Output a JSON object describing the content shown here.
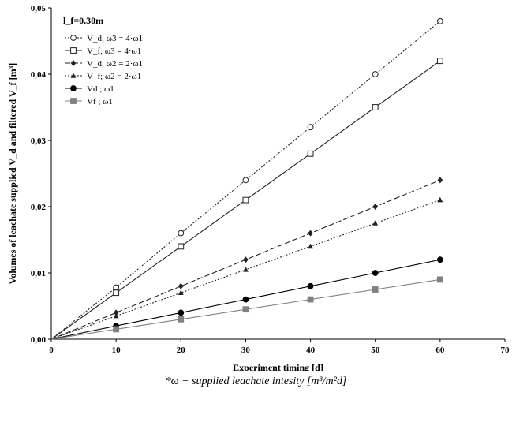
{
  "chart_data": {
    "type": "line",
    "xlabel": "Experiment timing [d]",
    "ylabel": "Volumes of leachate supplied V_d and filtered V_f [m³]",
    "xlim": [
      0,
      70
    ],
    "ylim": [
      0,
      0.05
    ],
    "x_ticks": [
      "0",
      "10",
      "20",
      "30",
      "40",
      "50",
      "60",
      "70"
    ],
    "y_ticks": [
      "0,00",
      "0,01",
      "0,02",
      "0,03",
      "0,04",
      "0,05"
    ],
    "grid": false,
    "legend_placement": "top-left",
    "legend_title": "l_f=0.30m",
    "x": [
      0,
      10,
      20,
      30,
      40,
      50,
      60
    ],
    "series": [
      {
        "name": "V_d; ω3 = 4·ω1",
        "marker": "open-circle",
        "line": "dotted",
        "color": "#222222",
        "values": [
          0,
          0.0078,
          0.016,
          0.024,
          0.032,
          0.04,
          0.048
        ]
      },
      {
        "name": "V_f; ω3 = 4·ω1",
        "marker": "open-square",
        "line": "solid",
        "color": "#222222",
        "values": [
          0,
          0.007,
          0.014,
          0.021,
          0.028,
          0.035,
          0.042
        ]
      },
      {
        "name": "V_d; ω2 = 2·ω1",
        "marker": "diamond",
        "line": "dashed",
        "color": "#222222",
        "values": [
          0,
          0.004,
          0.008,
          0.012,
          0.016,
          0.02,
          0.024
        ]
      },
      {
        "name": "V_f; ω2 = 2·ω1",
        "marker": "triangle",
        "line": "dotted",
        "color": "#222222",
        "values": [
          0,
          0.0035,
          0.007,
          0.0105,
          0.014,
          0.0175,
          0.021
        ]
      },
      {
        "name": "Vd ; ω1",
        "marker": "filled-circle",
        "line": "solid",
        "color": "#000000",
        "values": [
          0,
          0.002,
          0.004,
          0.006,
          0.008,
          0.01,
          0.012
        ]
      },
      {
        "name": "Vf ; ω1",
        "marker": "filled-square",
        "line": "solid",
        "color": "#808080",
        "values": [
          0,
          0.0015,
          0.003,
          0.0045,
          0.006,
          0.0075,
          0.009
        ]
      }
    ]
  },
  "footnote": "*ω − supplied leachate intesity [m³/m²d]"
}
